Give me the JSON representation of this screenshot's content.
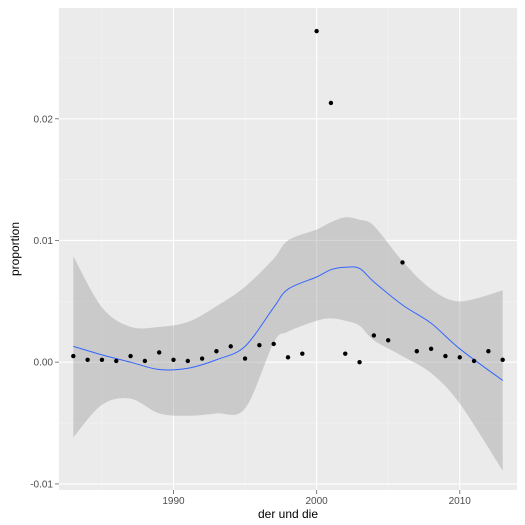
{
  "chart_data": {
    "type": "scatter",
    "title": "",
    "xlabel": "der und die",
    "ylabel": "proportion",
    "xlim": [
      1982,
      2014
    ],
    "ylim": [
      -0.0105,
      0.0291
    ],
    "x_ticks": [
      1990,
      2000,
      2010
    ],
    "x_tick_labels": [
      "1990",
      "2000",
      "2010"
    ],
    "y_ticks": [
      -0.01,
      0.0,
      0.01,
      0.02
    ],
    "y_tick_labels": [
      "-0.01",
      "0.00",
      "0.01",
      "0.02"
    ],
    "grid": true,
    "legend": "none",
    "points": {
      "x": [
        1983,
        1984,
        1985,
        1986,
        1987,
        1988,
        1989,
        1990,
        1991,
        1992,
        1993,
        1994,
        1995,
        1996,
        1997,
        1998,
        1999,
        2000,
        2001,
        2002,
        2003,
        2004,
        2005,
        2006,
        2007,
        2008,
        2009,
        2010,
        2011,
        2012,
        2013
      ],
      "y": [
        0.0005,
        0.0002,
        0.0002,
        0.0001,
        0.0005,
        0.0001,
        0.0008,
        0.0002,
        0.0001,
        0.0003,
        0.0009,
        0.0013,
        0.0003,
        0.0014,
        0.0015,
        0.0004,
        0.0007,
        0.0272,
        0.0213,
        0.0007,
        0.0,
        0.0022,
        0.0018,
        0.0082,
        0.0009,
        0.0011,
        0.0005,
        0.0004,
        0.0001,
        0.0009,
        0.0002
      ]
    },
    "smooth": {
      "x": [
        1983,
        1985,
        1987,
        1989,
        1991,
        1993,
        1995,
        1997,
        1998,
        2000,
        2001,
        2002,
        2003,
        2004,
        2006,
        2008,
        2010,
        2013
      ],
      "y": [
        0.0013,
        0.0006,
        0.0,
        -0.0006,
        -0.0005,
        0.0002,
        0.0013,
        0.0045,
        0.006,
        0.007,
        0.0076,
        0.0078,
        0.0077,
        0.0066,
        0.0047,
        0.0032,
        0.0011,
        -0.0015
      ],
      "lower": [
        -0.0062,
        -0.0035,
        -0.003,
        -0.0042,
        -0.0044,
        -0.0042,
        -0.0038,
        0.0016,
        0.0025,
        0.0034,
        0.0036,
        0.0034,
        0.003,
        0.0018,
        0.0005,
        -0.0009,
        -0.0034,
        -0.0089
      ],
      "upper": [
        0.0087,
        0.0045,
        0.0029,
        0.0029,
        0.0033,
        0.0046,
        0.0062,
        0.0085,
        0.01,
        0.0109,
        0.0115,
        0.0119,
        0.0117,
        0.0112,
        0.0083,
        0.006,
        0.005,
        0.0059
      ]
    },
    "colors": {
      "panel": "#ebebeb",
      "grid_major": "#ffffff",
      "grid_minor": "#f5f5f5",
      "ribbon": "#999999",
      "line": "#3366ff",
      "point": "#000000"
    }
  }
}
